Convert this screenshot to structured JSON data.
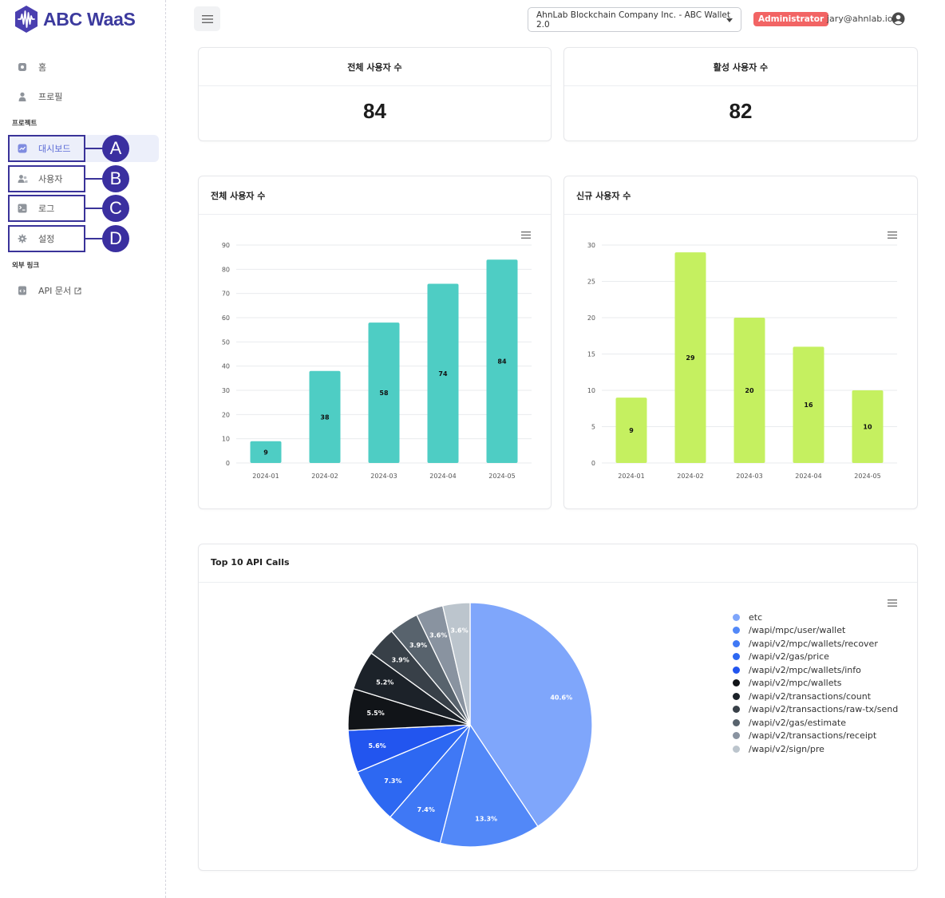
{
  "app": {
    "brand": "ABC WaaS"
  },
  "sidebar": {
    "items_top": [
      {
        "label": "홈",
        "icon": "home-icon"
      },
      {
        "label": "프로필",
        "icon": "person-icon"
      }
    ],
    "project_section": "프로젝트",
    "project_items": [
      {
        "label": "대시보드",
        "icon": "chart-icon",
        "marker": "A"
      },
      {
        "label": "사용자",
        "icon": "users-icon",
        "marker": "B"
      },
      {
        "label": "로그",
        "icon": "log-icon",
        "marker": "C"
      },
      {
        "label": "설정",
        "icon": "gear-icon",
        "marker": "D"
      }
    ],
    "external_section": "외부 링크",
    "external_items": [
      {
        "label": "API 문서",
        "icon": "code-doc-icon"
      }
    ]
  },
  "header": {
    "org_select": "AhnLab Blockchain Company Inc. - ABC Wallet 2.0",
    "role": "Administrator",
    "email": "jary@ahnlab.io"
  },
  "stats": {
    "total_users": {
      "label": "전체 사용자 수",
      "value": "84"
    },
    "active_users": {
      "label": "활성 사용자 수",
      "value": "82"
    }
  },
  "colors": {
    "accent": "#3c3a9e",
    "total_bar": "#4ecdc4",
    "new_bar": "#c5f060",
    "badge": "#f26464"
  },
  "chart_data": [
    {
      "type": "bar",
      "title": "전체 사용자 수",
      "categories": [
        "2024-01",
        "2024-02",
        "2024-03",
        "2024-04",
        "2024-05"
      ],
      "values": [
        9,
        38,
        58,
        74,
        84
      ],
      "ylim": [
        0,
        90
      ],
      "yticks": [
        0,
        10,
        20,
        30,
        40,
        50,
        60,
        70,
        80,
        90
      ],
      "grid": true
    },
    {
      "type": "bar",
      "title": "신규 사용자 수",
      "categories": [
        "2024-01",
        "2024-02",
        "2024-03",
        "2024-04",
        "2024-05"
      ],
      "values": [
        9,
        29,
        20,
        16,
        10
      ],
      "ylim": [
        0,
        30
      ],
      "yticks": [
        0,
        5,
        10,
        15,
        20,
        25,
        30
      ],
      "grid": true
    },
    {
      "type": "pie",
      "title": "Top 10 API Calls",
      "legend_position": "right",
      "slices": [
        {
          "name": "etc",
          "value": 40.6,
          "label": "40.6%",
          "color": "#7fa6fb"
        },
        {
          "name": "/wapi/mpc/user/wallet",
          "value": 13.3,
          "label": "13.3%",
          "color": "#5288f8"
        },
        {
          "name": "/wapi/v2/mpc/wallets/recover",
          "value": 7.4,
          "label": "7.4%",
          "color": "#3f78f5"
        },
        {
          "name": "/wapi/v2/gas/price",
          "value": 7.3,
          "label": "7.3%",
          "color": "#2d68f2"
        },
        {
          "name": "/wapi/v2/mpc/wallets/info",
          "value": 5.6,
          "label": "5.6%",
          "color": "#2255ef"
        },
        {
          "name": "/wapi/v2/mpc/wallets",
          "value": 5.5,
          "label": "5.5%",
          "color": "#111418"
        },
        {
          "name": "/wapi/v2/transactions/count",
          "value": 5.2,
          "label": "5.2%",
          "color": "#1c2229"
        },
        {
          "name": "/wapi/v2/transactions/raw-tx/send",
          "value": 3.9,
          "label": "3.9%",
          "color": "#384048"
        },
        {
          "name": "/wapi/v2/gas/estimate",
          "value": 3.9,
          "label": "3.9%",
          "color": "#58636d"
        },
        {
          "name": "/wapi/v2/transactions/receipt",
          "value": 3.6,
          "label": "3.6%",
          "color": "#8993a0"
        },
        {
          "name": "/wapi/v2/sign/pre",
          "value": 3.6,
          "label": "3.6%",
          "color": "#bcc5cd"
        }
      ]
    }
  ]
}
